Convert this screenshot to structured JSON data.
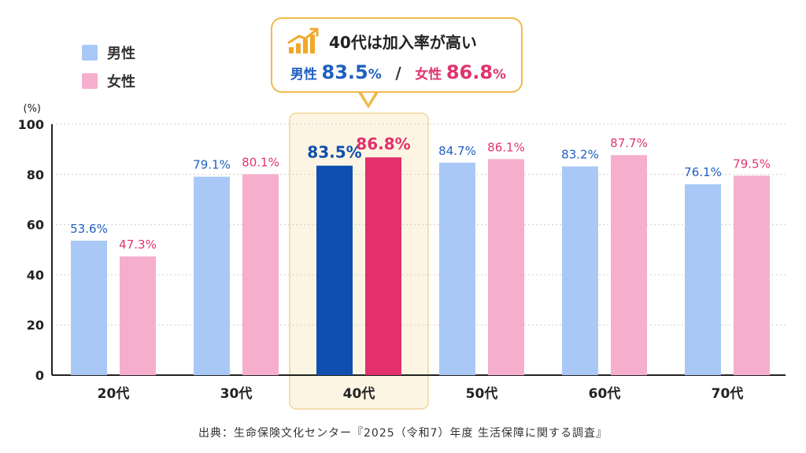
{
  "legend": {
    "male_label": "男性",
    "female_label": "女性"
  },
  "callout": {
    "title": "40代は加入率が高い",
    "male_label": "男性",
    "male_value": "83.5",
    "female_label": "女性",
    "female_value": "86.8",
    "unit": "%",
    "separator": "/",
    "icon": "trend-up-chart-icon"
  },
  "source": "出典：生命保険文化センター『2025（令和7）年度 生活保障に関する調査』",
  "colors": {
    "male": "#a9c8f6",
    "female": "#f6aecd",
    "male_highlight": "#0f4fb0",
    "female_highlight": "#e3306c",
    "male_label": "#1f5fbf",
    "female_label": "#e0346f",
    "highlight_bg": "#fdf5e3",
    "highlight_border": "#f1d49a",
    "callout_border": "#f1b94a"
  },
  "chart_data": {
    "type": "bar",
    "categories": [
      "20代",
      "30代",
      "40代",
      "50代",
      "60代",
      "70代"
    ],
    "series": [
      {
        "name": "男性",
        "values": [
          53.6,
          79.1,
          83.5,
          84.7,
          83.2,
          76.1
        ]
      },
      {
        "name": "女性",
        "values": [
          47.3,
          80.1,
          86.8,
          86.1,
          87.7,
          79.5
        ]
      }
    ],
    "value_labels": {
      "男性": [
        "53.6%",
        "79.1%",
        "83.5%",
        "84.7%",
        "83.2%",
        "76.1%"
      ],
      "女性": [
        "47.3%",
        "80.1%",
        "86.8%",
        "86.1%",
        "87.7%",
        "79.5%"
      ]
    },
    "highlight_category": "40代",
    "yunit": "(%)",
    "ylim": [
      0,
      100
    ],
    "yticks": [
      0,
      20,
      40,
      60,
      80,
      100
    ],
    "grid": true,
    "legend_position": "top-left"
  }
}
